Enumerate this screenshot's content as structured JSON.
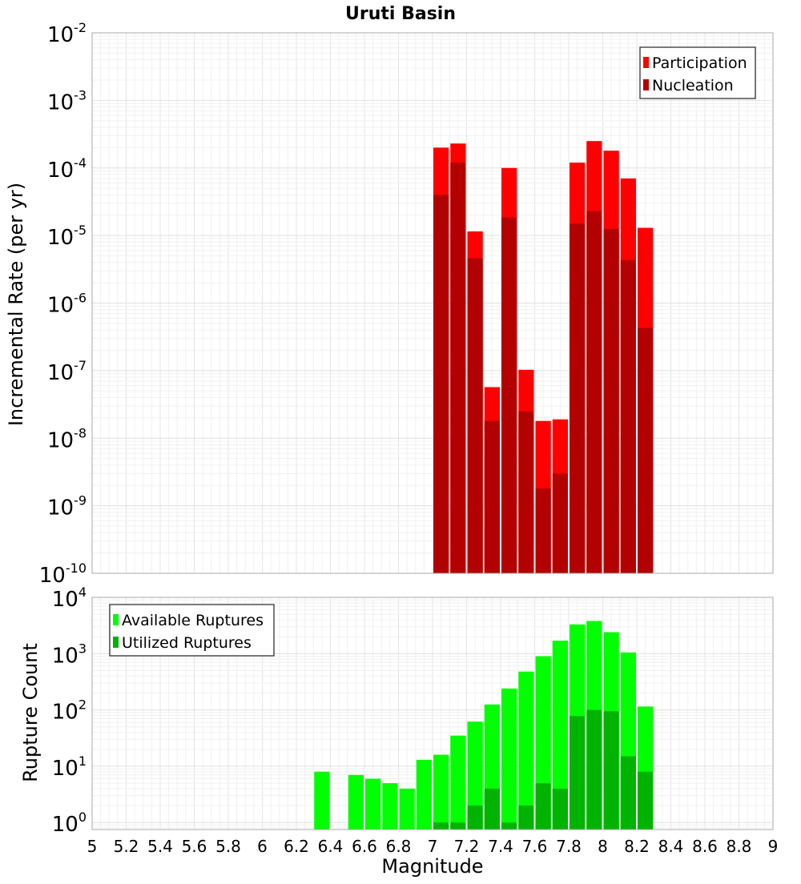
{
  "chart_data": [
    {
      "type": "bar",
      "title": "Uruti Basin",
      "xlabel": "",
      "ylabel": "Incremental Rate (per yr)",
      "yscale": "log",
      "ylim": [
        1e-10,
        0.01
      ],
      "xlim": [
        5,
        9
      ],
      "bar_width": 0.1,
      "grid": true,
      "legend_position": "top-right",
      "y_tick_exponents": [
        "-10",
        "-9",
        "-8",
        "-7",
        "-6",
        "-5",
        "-4",
        "-3",
        "-2"
      ],
      "x": [
        7.05,
        7.15,
        7.25,
        7.35,
        7.45,
        7.55,
        7.65,
        7.75,
        7.85,
        7.95,
        8.05,
        8.15,
        8.25
      ],
      "series": [
        {
          "name": "Participation",
          "color": "#ff0000",
          "values": [
            0.0002,
            0.00023,
            1.15e-05,
            5.7e-08,
            0.0001,
            1.03e-07,
            1.8e-08,
            1.9e-08,
            0.00012,
            0.00025,
            0.00018,
            7e-05,
            1.3e-05
          ]
        },
        {
          "name": "Nucleation",
          "color": "#b30000",
          "values": [
            4e-05,
            0.00012,
            4.6e-06,
            1.8e-08,
            1.85e-05,
            2.5e-08,
            1.8e-09,
            3e-09,
            1.5e-05,
            2.3e-05,
            1.25e-05,
            4.3e-06,
            4.3e-07
          ]
        }
      ]
    },
    {
      "type": "bar",
      "title": "",
      "xlabel": "Magnitude",
      "ylabel": "Rupture Count",
      "yscale": "log",
      "ylim": [
        0.75,
        10000
      ],
      "xlim": [
        5,
        9
      ],
      "bar_width": 0.1,
      "grid": true,
      "legend_position": "top-left",
      "y_tick_exponents": [
        "0",
        "1",
        "2",
        "3",
        "4"
      ],
      "x_ticks": [
        "5",
        "5.2",
        "5.4",
        "5.6",
        "5.8",
        "6",
        "6.2",
        "6.4",
        "6.6",
        "6.8",
        "7",
        "7.2",
        "7.4",
        "7.6",
        "7.8",
        "8",
        "8.2",
        "8.4",
        "8.6",
        "8.8",
        "9"
      ],
      "series": [
        {
          "name": "Available Ruptures",
          "color": "#00ff00",
          "x": [
            6.35,
            6.55,
            6.65,
            6.75,
            6.85,
            6.95,
            7.05,
            7.15,
            7.25,
            7.35,
            7.45,
            7.55,
            7.65,
            7.75,
            7.85,
            7.95,
            8.05,
            8.15,
            8.25
          ],
          "values": [
            8,
            7,
            6,
            5,
            4,
            13,
            16,
            35,
            62,
            125,
            240,
            480,
            900,
            1700,
            3300,
            3800,
            2400,
            1050,
            115
          ]
        },
        {
          "name": "Utilized Ruptures",
          "color": "#00b300",
          "x": [
            7.05,
            7.15,
            7.25,
            7.35,
            7.45,
            7.55,
            7.65,
            7.75,
            7.85,
            7.95,
            8.05,
            8.15,
            8.25
          ],
          "values": [
            1,
            1,
            2,
            4,
            1,
            2,
            5,
            4,
            78,
            100,
            95,
            15,
            8
          ]
        }
      ]
    }
  ]
}
